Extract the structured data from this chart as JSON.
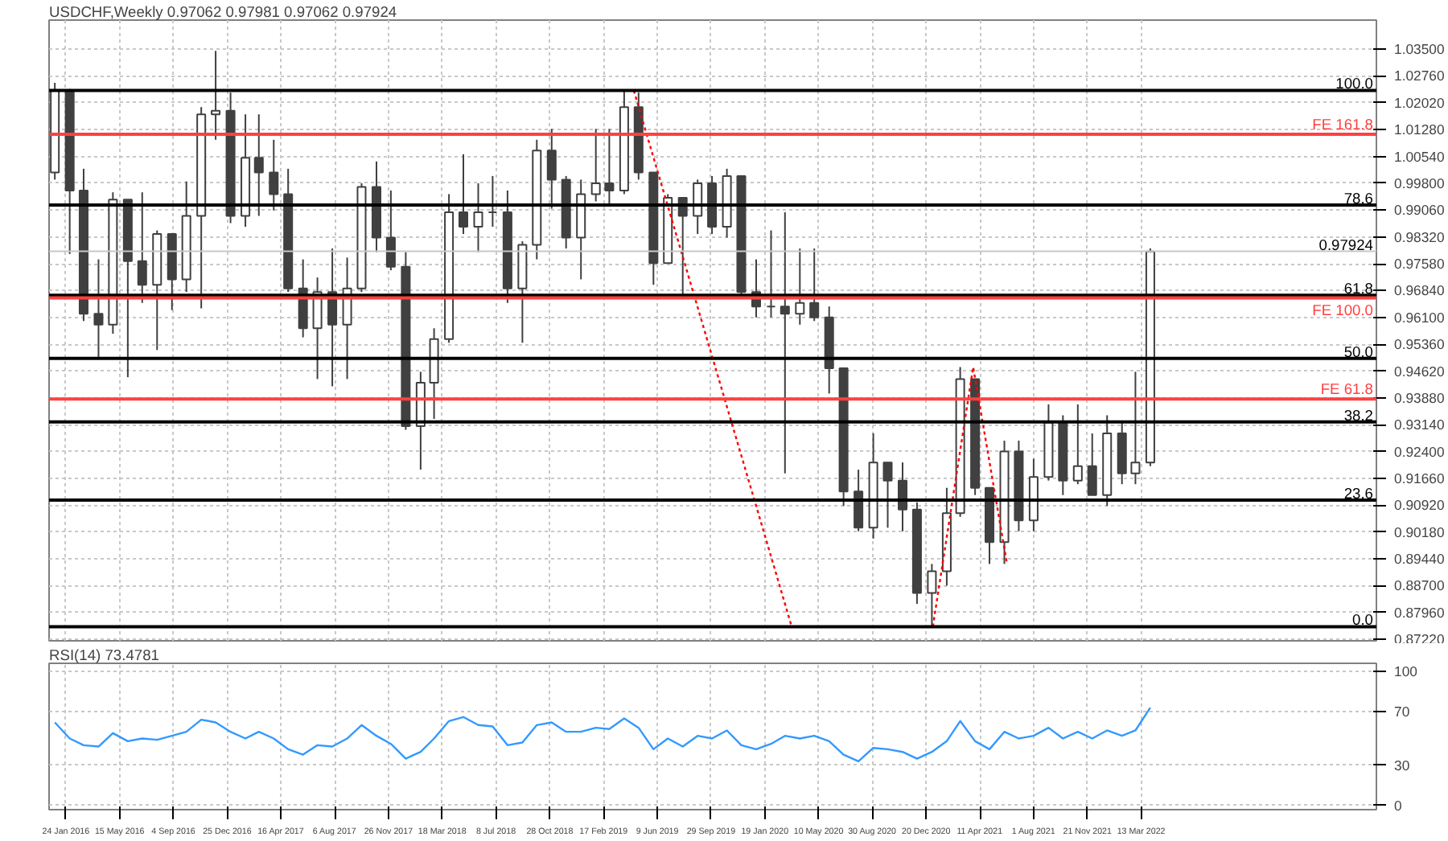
{
  "chart_data": [
    {
      "type": "candlestick",
      "title": "USDCHF,Weekly  0.97062 0.97981 0.97062 0.97924",
      "color": "#404040",
      "grid": true,
      "tick_labels": "y",
      "x": [
        "2016-01",
        "2016-02",
        "2016-03",
        "2016-04",
        "2016-05",
        "2016-06",
        "2016-07",
        "2016-08",
        "2016-09",
        "2016-10",
        "2016-11",
        "2016-12",
        "2017-01",
        "2017-02",
        "2017-03",
        "2017-04",
        "2017-05",
        "2017-06",
        "2017-07",
        "2017-08",
        "2017-09",
        "2017-10",
        "2017-11",
        "2017-12",
        "2018-01",
        "2018-02",
        "2018-03",
        "2018-04",
        "2018-05",
        "2018-06",
        "2018-07",
        "2018-08",
        "2018-09",
        "2018-10",
        "2018-11",
        "2018-12",
        "2019-01",
        "2019-02",
        "2019-03",
        "2019-04",
        "2019-05",
        "2019-06",
        "2019-07",
        "2019-08",
        "2019-09",
        "2019-10",
        "2019-11",
        "2019-12",
        "2020-01",
        "2020-02",
        "2020-03",
        "2020-04",
        "2020-05",
        "2020-06",
        "2020-07",
        "2020-08",
        "2020-09",
        "2020-10",
        "2020-11",
        "2020-12",
        "2021-01",
        "2021-02",
        "2021-03",
        "2021-04",
        "2021-05",
        "2021-06",
        "2021-07",
        "2021-08",
        "2021-09",
        "2021-10",
        "2021-11",
        "2021-12",
        "2022-01",
        "2022-02",
        "2022-03",
        "2022-04"
      ],
      "ohlc": [
        [
          1.001,
          1.0257,
          0.999,
          1.0235
        ],
        [
          1.0235,
          1.024,
          0.9785,
          0.996
        ],
        [
          0.996,
          1.002,
          0.96,
          0.962
        ],
        [
          0.962,
          0.977,
          0.95,
          0.959
        ],
        [
          0.959,
          0.9955,
          0.9565,
          0.9935
        ],
        [
          0.9935,
          0.9935,
          0.9445,
          0.9765
        ],
        [
          0.9765,
          0.9955,
          0.965,
          0.97
        ],
        [
          0.97,
          0.985,
          0.952,
          0.984
        ],
        [
          0.984,
          0.984,
          0.963,
          0.9715
        ],
        [
          0.9715,
          0.9985,
          0.968,
          0.989
        ],
        [
          0.989,
          1.019,
          0.9635,
          1.017
        ],
        [
          1.017,
          1.0345,
          1.01,
          1.018
        ],
        [
          1.018,
          1.023,
          0.987,
          0.989
        ],
        [
          0.989,
          1.017,
          0.986,
          1.005
        ],
        [
          1.005,
          1.017,
          0.989,
          1.001
        ],
        [
          1.001,
          1.01,
          0.9905,
          0.995
        ],
        [
          0.995,
          1.002,
          0.968,
          0.969
        ],
        [
          0.969,
          0.977,
          0.9555,
          0.958
        ],
        [
          0.958,
          0.972,
          0.944,
          0.968
        ],
        [
          0.968,
          0.98,
          0.942,
          0.959
        ],
        [
          0.959,
          0.9775,
          0.944,
          0.969
        ],
        [
          0.969,
          0.998,
          0.968,
          0.997
        ],
        [
          0.997,
          1.004,
          0.979,
          0.983
        ],
        [
          0.983,
          0.996,
          0.974,
          0.975
        ],
        [
          0.975,
          0.979,
          0.93,
          0.931
        ],
        [
          0.931,
          0.946,
          0.919,
          0.943
        ],
        [
          0.943,
          0.958,
          0.933,
          0.955
        ],
        [
          0.955,
          0.995,
          0.954,
          0.99
        ],
        [
          0.99,
          1.006,
          0.984,
          0.986
        ],
        [
          0.986,
          0.998,
          0.979,
          0.99
        ],
        [
          0.99,
          1.0,
          0.986,
          0.99
        ],
        [
          0.99,
          0.996,
          0.965,
          0.969
        ],
        [
          0.969,
          0.982,
          0.954,
          0.981
        ],
        [
          0.981,
          1.01,
          0.977,
          1.007
        ],
        [
          1.007,
          1.013,
          0.991,
          0.999
        ],
        [
          0.999,
          1.0,
          0.98,
          0.983
        ],
        [
          0.983,
          0.999,
          0.9715,
          0.995
        ],
        [
          0.995,
          1.013,
          0.993,
          0.998
        ],
        [
          0.998,
          1.013,
          0.992,
          0.996
        ],
        [
          0.996,
          1.0236,
          0.995,
          1.019
        ],
        [
          1.019,
          1.023,
          0.999,
          1.001
        ],
        [
          1.001,
          1.001,
          0.97,
          0.976
        ],
        [
          0.976,
          0.995,
          0.976,
          0.994
        ],
        [
          0.994,
          0.994,
          0.966,
          0.989
        ],
        [
          0.989,
          0.999,
          0.984,
          0.998
        ],
        [
          0.998,
          1.0,
          0.984,
          0.986
        ],
        [
          0.986,
          1.002,
          0.983,
          1.0
        ],
        [
          1.0,
          1.0,
          0.967,
          0.968
        ],
        [
          0.968,
          0.977,
          0.961,
          0.964
        ],
        [
          0.964,
          0.985,
          0.961,
          0.964
        ],
        [
          0.964,
          0.99,
          0.918,
          0.962
        ],
        [
          0.962,
          0.98,
          0.959,
          0.965
        ],
        [
          0.965,
          0.98,
          0.96,
          0.961
        ],
        [
          0.961,
          0.964,
          0.94,
          0.947
        ],
        [
          0.947,
          0.947,
          0.909,
          0.913
        ],
        [
          0.913,
          0.919,
          0.902,
          0.903
        ],
        [
          0.903,
          0.929,
          0.9,
          0.921
        ],
        [
          0.921,
          0.921,
          0.903,
          0.916
        ],
        [
          0.916,
          0.921,
          0.902,
          0.908
        ],
        [
          0.908,
          0.91,
          0.882,
          0.885
        ],
        [
          0.885,
          0.893,
          0.8757,
          0.891
        ],
        [
          0.891,
          0.914,
          0.887,
          0.907
        ],
        [
          0.907,
          0.9473,
          0.906,
          0.944
        ],
        [
          0.944,
          0.944,
          0.912,
          0.914
        ],
        [
          0.914,
          0.914,
          0.893,
          0.899
        ],
        [
          0.899,
          0.927,
          0.893,
          0.924
        ],
        [
          0.924,
          0.927,
          0.902,
          0.905
        ],
        [
          0.905,
          0.922,
          0.902,
          0.917
        ],
        [
          0.917,
          0.937,
          0.916,
          0.932
        ],
        [
          0.932,
          0.934,
          0.912,
          0.916
        ],
        [
          0.916,
          0.937,
          0.915,
          0.92
        ],
        [
          0.92,
          0.929,
          0.912,
          0.912
        ],
        [
          0.912,
          0.934,
          0.909,
          0.929
        ],
        [
          0.929,
          0.932,
          0.915,
          0.918
        ],
        [
          0.918,
          0.946,
          0.915,
          0.921
        ],
        [
          0.921,
          0.98,
          0.92,
          0.9792
        ]
      ],
      "series": [
        {
          "type": "line",
          "color": "#ff0000",
          "line_style": "dotted",
          "x": [
            "2019-04-21",
            "2020-03-15"
          ],
          "values": [
            1.0236,
            0.8757
          ]
        },
        {
          "type": "line",
          "color": "#ff0000",
          "line_style": "dotted",
          "x": [
            "2021-01-03",
            "2021-03-28",
            "2021-06-06"
          ],
          "values": [
            0.8757,
            0.9473,
            0.8934
          ]
        }
      ],
      "xlim": [
        "2015-12-20",
        "2023-07-16"
      ],
      "xticks": [
        {
          "value": "2016-01-24",
          "label": null
        },
        {
          "value": "2016-05-15",
          "label": null
        },
        {
          "value": "2016-09-04",
          "label": null
        },
        {
          "value": "2016-12-25",
          "label": null
        },
        {
          "value": "2017-04-16",
          "label": null
        },
        {
          "value": "2017-08-06",
          "label": null
        },
        {
          "value": "2017-11-26",
          "label": null
        },
        {
          "value": "2018-03-18",
          "label": null
        },
        {
          "value": "2018-07-08",
          "label": null
        },
        {
          "value": "2018-10-28",
          "label": null
        },
        {
          "value": "2019-02-17",
          "label": null
        },
        {
          "value": "2019-06-09",
          "label": null
        },
        {
          "value": "2019-09-29",
          "label": null
        },
        {
          "value": "2020-01-19",
          "label": null
        },
        {
          "value": "2020-05-10",
          "label": null
        },
        {
          "value": "2020-08-30",
          "label": null
        },
        {
          "value": "2020-12-20",
          "label": null
        },
        {
          "value": "2021-04-11",
          "label": null
        },
        {
          "value": "2021-08-01",
          "label": null
        },
        {
          "value": "2021-11-21",
          "label": null
        },
        {
          "value": "2022-03-13",
          "label": null
        }
      ],
      "ylim": [
        0.8718,
        1.043
      ],
      "annotations": [
        {
          "text": "100.0",
          "x": "2023-07-16",
          "y": 1.0236
        },
        {
          "text": "FE 161.8",
          "x": "2023-07-16",
          "y": 1.0115
        },
        {
          "text": "78.6",
          "x": "2023-07-16",
          "y": 0.992
        },
        {
          "text": "61.8",
          "x": "2023-07-16",
          "y": 0.9671
        },
        {
          "text": "FE 100.0",
          "x": "2023-07-16",
          "y": 0.9664
        },
        {
          "text": "50.0",
          "x": "2023-07-16",
          "y": 0.9497
        },
        {
          "text": "FE 61.8",
          "x": "2023-07-16",
          "y": 0.9385
        },
        {
          "text": "38.2",
          "x": "2023-07-16",
          "y": 0.9322
        },
        {
          "text": "23.6",
          "x": "2023-07-16",
          "y": 0.9106
        },
        {
          "text": "0.0",
          "x": "2023-07-16",
          "y": 0.8757
        }
      ],
      "yticks": [
        {
          "value": 0.8722,
          "label": "0.87220"
        },
        {
          "value": 0.8796,
          "label": "0.87960"
        },
        {
          "value": 0.887,
          "label": "0.88700"
        },
        {
          "value": 0.8944,
          "label": "0.89440"
        },
        {
          "value": 0.9018,
          "label": "0.90180"
        },
        {
          "value": 0.9092,
          "label": "0.90920"
        },
        {
          "value": 0.9166,
          "label": "0.91660"
        },
        {
          "value": 0.924,
          "label": "0.92400"
        },
        {
          "value": 0.9314,
          "label": "0.93140"
        },
        {
          "value": 0.9388,
          "label": "0.93880"
        },
        {
          "value": 0.9462,
          "label": "0.94620"
        },
        {
          "value": 0.9536,
          "label": "0.95360"
        },
        {
          "value": 0.961,
          "label": "0.96100"
        },
        {
          "value": 0.9684,
          "label": "0.96840"
        },
        {
          "value": 0.9758,
          "label": "0.97580"
        },
        {
          "value": 0.9832,
          "label": "0.98320"
        },
        {
          "value": 0.9906,
          "label": "0.99060"
        },
        {
          "value": 0.998,
          "label": "0.99800"
        },
        {
          "value": 1.0054,
          "label": "1.00540"
        },
        {
          "value": 1.0128,
          "label": "1.01280"
        },
        {
          "value": 1.0202,
          "label": "1.02020"
        },
        {
          "value": 1.0276,
          "label": "1.02760"
        },
        {
          "value": 1.035,
          "label": "1.03500"
        }
      ],
      "ref_lines": [
        {
          "axis": "y",
          "value": 1.0236,
          "color": "#000000"
        },
        {
          "axis": "y",
          "value": 1.0115,
          "color": "#ff4040"
        },
        {
          "axis": "y",
          "value": 0.992,
          "color": "#000000"
        },
        {
          "axis": "y",
          "value": 0.97924,
          "label": "0.97924",
          "color": "#c8c8c8"
        },
        {
          "axis": "y",
          "value": 0.9671,
          "color": "#000000"
        },
        {
          "axis": "y",
          "value": 0.9664,
          "color": "#ff4040"
        },
        {
          "axis": "y",
          "value": 0.9497,
          "color": "#000000"
        },
        {
          "axis": "y",
          "value": 0.9385,
          "color": "#ff4040"
        },
        {
          "axis": "y",
          "value": 0.9322,
          "color": "#000000"
        },
        {
          "axis": "y",
          "value": 0.9106,
          "color": "#000000"
        },
        {
          "axis": "y",
          "value": 0.8757,
          "color": "#000000"
        }
      ]
    },
    {
      "type": "line",
      "title": "RSI(14) 73.4781",
      "grid": true,
      "x": [
        "2016-01",
        "2016-02",
        "2016-03",
        "2016-04",
        "2016-05",
        "2016-06",
        "2016-07",
        "2016-08",
        "2016-09",
        "2016-10",
        "2016-11",
        "2016-12",
        "2017-01",
        "2017-02",
        "2017-03",
        "2017-04",
        "2017-05",
        "2017-06",
        "2017-07",
        "2017-08",
        "2017-09",
        "2017-10",
        "2017-11",
        "2017-12",
        "2018-01",
        "2018-02",
        "2018-03",
        "2018-04",
        "2018-05",
        "2018-06",
        "2018-07",
        "2018-08",
        "2018-09",
        "2018-10",
        "2018-11",
        "2018-12",
        "2019-01",
        "2019-02",
        "2019-03",
        "2019-04",
        "2019-05",
        "2019-06",
        "2019-07",
        "2019-08",
        "2019-09",
        "2019-10",
        "2019-11",
        "2019-12",
        "2020-01",
        "2020-02",
        "2020-03",
        "2020-04",
        "2020-05",
        "2020-06",
        "2020-07",
        "2020-08",
        "2020-09",
        "2020-10",
        "2020-11",
        "2020-12",
        "2021-01",
        "2021-02",
        "2021-03",
        "2021-04",
        "2021-05",
        "2021-06",
        "2021-07",
        "2021-08",
        "2021-09",
        "2021-10",
        "2021-11",
        "2021-12",
        "2022-01",
        "2022-02",
        "2022-03",
        "2022-04"
      ],
      "series": [
        {
          "color": "#3399ff",
          "values": [
            62,
            50,
            45,
            44,
            54,
            48,
            50,
            49,
            52,
            55,
            64,
            62,
            55,
            50,
            55,
            50,
            42,
            38,
            45,
            44,
            50,
            60,
            52,
            46,
            35,
            40,
            50,
            63,
            66,
            60,
            59,
            45,
            47,
            60,
            62,
            55,
            55,
            58,
            57,
            65,
            58,
            42,
            50,
            44,
            52,
            50,
            56,
            45,
            42,
            46,
            52,
            50,
            52,
            48,
            38,
            33,
            43,
            42,
            40,
            35,
            40,
            48,
            63,
            48,
            42,
            55,
            50,
            52,
            58,
            50,
            55,
            50,
            56,
            52,
            56,
            73
          ]
        }
      ],
      "xlim": [
        "2015-12-20",
        "2023-07-16"
      ],
      "xticks": [
        {
          "value": "2016-01-24",
          "label": "24 Jan 2016"
        },
        {
          "value": "2016-05-15",
          "label": "15 May 2016"
        },
        {
          "value": "2016-09-04",
          "label": "4 Sep 2016"
        },
        {
          "value": "2016-12-25",
          "label": "25 Dec 2016"
        },
        {
          "value": "2017-04-16",
          "label": "16 Apr 2017"
        },
        {
          "value": "2017-08-06",
          "label": "6 Aug 2017"
        },
        {
          "value": "2017-11-26",
          "label": "26 Nov 2017"
        },
        {
          "value": "2018-03-18",
          "label": "18 Mar 2018"
        },
        {
          "value": "2018-07-08",
          "label": "8 Jul 2018"
        },
        {
          "value": "2018-10-28",
          "label": "28 Oct 2018"
        },
        {
          "value": "2019-02-17",
          "label": "17 Feb 2019"
        },
        {
          "value": "2019-06-09",
          "label": "9 Jun 2019"
        },
        {
          "value": "2019-09-29",
          "label": "29 Sep 2019"
        },
        {
          "value": "2020-01-19",
          "label": "19 Jan 2020"
        },
        {
          "value": "2020-05-10",
          "label": "10 May 2020"
        },
        {
          "value": "2020-08-30",
          "label": "30 Aug 2020"
        },
        {
          "value": "2020-12-20",
          "label": "20 Dec 2020"
        },
        {
          "value": "2021-04-11",
          "label": "11 Apr 2021"
        },
        {
          "value": "2021-08-01",
          "label": "1 Aug 2021"
        },
        {
          "value": "2021-11-21",
          "label": "21 Nov 2021"
        },
        {
          "value": "2022-03-13",
          "label": "13 Mar 2022"
        }
      ],
      "ylim": [
        -3,
        106
      ],
      "yticks": [
        0,
        30,
        70,
        100
      ]
    }
  ]
}
